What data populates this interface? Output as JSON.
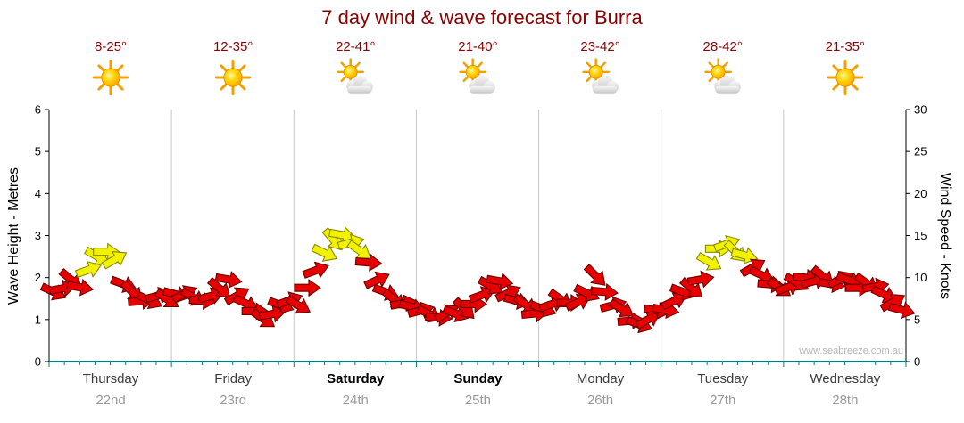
{
  "watermark": "www.seabreeze.com.au",
  "chart_data": {
    "type": "scatter",
    "subtype": "wind-arrow-forecast",
    "title": "7 day wind & wave forecast for Burra",
    "ylabel_left": "Wave Height - Metres",
    "ylabel_right": "Wind Speed - Knots",
    "ylim_left": [
      0,
      6
    ],
    "ylim_right": [
      0,
      30
    ],
    "left_ticks": [
      0,
      1,
      2,
      3,
      4,
      5,
      6
    ],
    "right_ticks": [
      0,
      5,
      10,
      15,
      20,
      25,
      30
    ],
    "grid": "vertical day separators only",
    "legend": "none",
    "days": [
      {
        "name": "Thursday",
        "date": "22nd",
        "temp": "8-25°",
        "icon": "sunny",
        "bold": false
      },
      {
        "name": "Friday",
        "date": "23rd",
        "temp": "12-35°",
        "icon": "sunny",
        "bold": false
      },
      {
        "name": "Saturday",
        "date": "24th",
        "temp": "22-41°",
        "icon": "partly",
        "bold": true
      },
      {
        "name": "Sunday",
        "date": "25th",
        "temp": "21-40°",
        "icon": "partly",
        "bold": true
      },
      {
        "name": "Monday",
        "date": "26th",
        "temp": "23-42°",
        "icon": "partly",
        "bold": false
      },
      {
        "name": "Tuesday",
        "date": "27th",
        "temp": "28-42°",
        "icon": "partly",
        "bold": false
      },
      {
        "name": "Wednesday",
        "date": "28th",
        "temp": "21-35°",
        "icon": "sunny",
        "bold": false
      }
    ],
    "wind_arrows": {
      "points_per_day": 14,
      "unit": "knots",
      "speeds": [
        8,
        9,
        10,
        9,
        11,
        12.5,
        13,
        12,
        9,
        8,
        7.5,
        7.5,
        8,
        7.5,
        8,
        8,
        7.5,
        7,
        7.5,
        9,
        10,
        8,
        7,
        6,
        5,
        5.5,
        6.5,
        7,
        7,
        9,
        11,
        13,
        14.5,
        15,
        14,
        13,
        11.5,
        10,
        8.5,
        7.5,
        7,
        6.5,
        6,
        5.5,
        5,
        5.5,
        6,
        6.5,
        7,
        8,
        9,
        9.5,
        8,
        7,
        6.5,
        6,
        6.5,
        7,
        7.5,
        7,
        7,
        8,
        10,
        8,
        7,
        6.5,
        5,
        4.5,
        5,
        6,
        6,
        7,
        8,
        9,
        10,
        12,
        13.5,
        14,
        13,
        12.5,
        11,
        10,
        9.5,
        9,
        9,
        9.5,
        10,
        9.5,
        10,
        9,
        9.5,
        10,
        9,
        9.5,
        9,
        8,
        7,
        6
      ],
      "colors": [
        "r",
        "r",
        "r",
        "r",
        "y",
        "y",
        "y",
        "y",
        "r",
        "r",
        "r",
        "r",
        "r",
        "r",
        "r",
        "r",
        "r",
        "r",
        "r",
        "r",
        "r",
        "r",
        "r",
        "r",
        "r",
        "r",
        "r",
        "r",
        "r",
        "r",
        "r",
        "y",
        "y",
        "y",
        "y",
        "y",
        "r",
        "r",
        "r",
        "r",
        "r",
        "r",
        "r",
        "r",
        "r",
        "r",
        "r",
        "r",
        "r",
        "r",
        "r",
        "r",
        "r",
        "r",
        "r",
        "r",
        "r",
        "r",
        "r",
        "r",
        "r",
        "r",
        "r",
        "r",
        "r",
        "r",
        "r",
        "r",
        "r",
        "r",
        "r",
        "r",
        "r",
        "r",
        "r",
        "y",
        "y",
        "y",
        "y",
        "y",
        "r",
        "r",
        "r",
        "r",
        "r",
        "r",
        "r",
        "r",
        "r",
        "r",
        "r",
        "r",
        "r",
        "r",
        "r",
        "r",
        "r",
        "r"
      ],
      "directions_deg": [
        25,
        -10,
        40,
        10,
        -20,
        30,
        0,
        -30,
        20,
        45,
        -5,
        25,
        -15,
        35,
        15,
        -25,
        30,
        5,
        -15,
        40,
        10,
        -30,
        25,
        0,
        35,
        -10,
        20,
        -20,
        30,
        0,
        -20,
        25,
        50,
        10,
        -15,
        35,
        5,
        -25,
        20,
        40,
        -10,
        15,
        -15,
        25,
        5,
        -30,
        20,
        45,
        0,
        -20,
        30,
        10,
        -25,
        15,
        35,
        -5,
        20,
        -20,
        35,
        0,
        -25,
        25,
        45,
        5,
        -15,
        30,
        -5,
        20,
        -30,
        10,
        10,
        -25,
        20,
        40,
        -10,
        30,
        0,
        -20,
        45,
        15,
        -30,
        25,
        5,
        35,
        -20,
        30,
        5,
        -15,
        40,
        10,
        -25,
        20,
        0,
        35,
        -10,
        25,
        -30,
        15
      ],
      "color_key": {
        "r": "#e60000",
        "y": "#f2f200"
      }
    },
    "colors": {
      "title": "#8b0000",
      "temps": "#8b0000",
      "red_arrow": "#e60000",
      "yellow_arrow": "#f2f200",
      "axis_bottom": "#008080",
      "grid": "#c8c8c8",
      "dates": "#9a9a9a"
    }
  }
}
